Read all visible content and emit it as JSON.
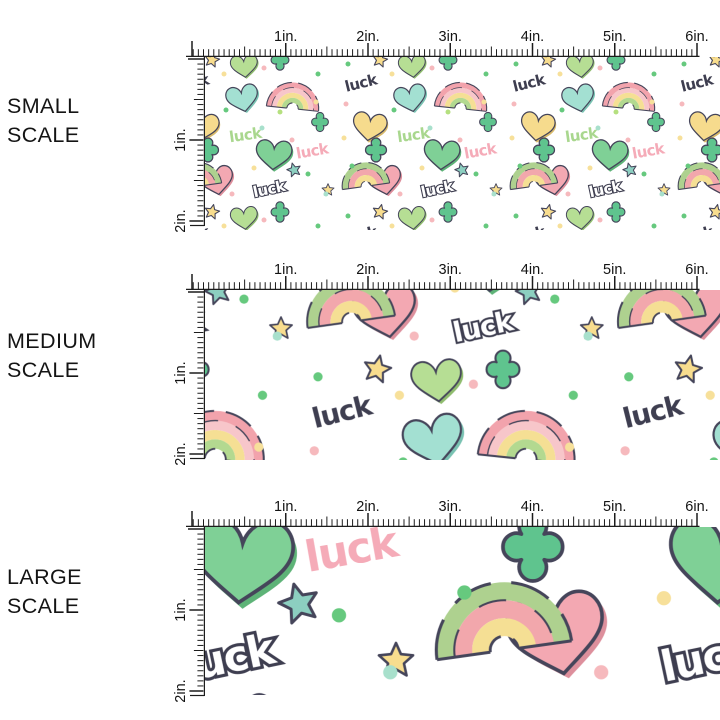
{
  "panels": [
    {
      "id": "small",
      "title": "SMALL SCALE"
    },
    {
      "id": "medium",
      "title": "MEDIUM SCALE"
    },
    {
      "id": "large",
      "title": "LARGE SCALE"
    }
  ],
  "ruler": {
    "horizontal_labels": [
      "1in.",
      "2in.",
      "3in.",
      "4in.",
      "5in.",
      "6in."
    ],
    "vertical_labels": [
      "1in.",
      "2in."
    ],
    "tick_color": "#1c1c1c",
    "label_color": "#131313"
  },
  "pattern": {
    "luck_text": "luck",
    "background": "#ffffff",
    "colors": {
      "outline": "#45455a",
      "navy_text": "#3e3e50",
      "green_text": "#a9d78e",
      "pink_text": "#f5abb8",
      "white_text": "#ffffff",
      "rainbow_pink": "#f2a3ac",
      "rainbow_light_pink": "#f7c6ca",
      "rainbow_yellow": "#f5df94",
      "rainbow_green": "#aed18f",
      "heart_teal": "#a3e0d2",
      "heart_yellow": "#f6db8d",
      "heart_green": "#7fd096",
      "heart_pink": "#f3a8b2",
      "heart_light_green": "#b6de94",
      "clover_green": "#5fc48e",
      "star_yellow": "#f8dd8e",
      "star_teal": "#8ccfc0",
      "dot_green": "#66c97e",
      "dot_pink": "#f6b9bd",
      "dot_yellow": "#f7e09a",
      "dot_mint": "#a8e0cc",
      "dot_light_green": "#b5e07f"
    },
    "scales": {
      "small": 1,
      "medium": 1.85,
      "large": 2.85
    }
  }
}
